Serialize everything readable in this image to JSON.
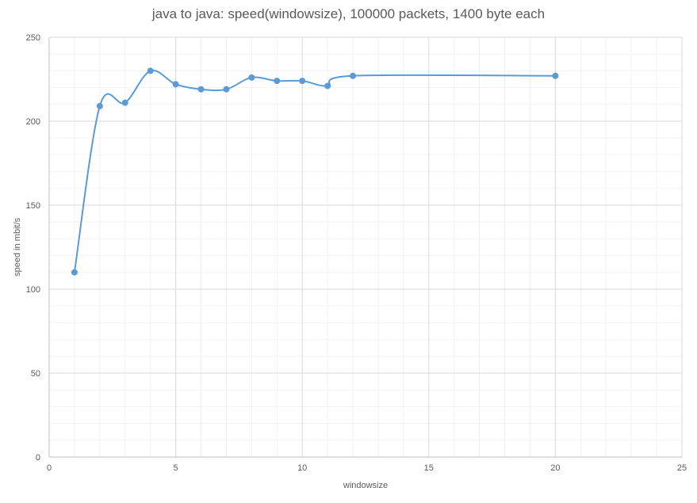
{
  "chart_data": {
    "type": "scatter",
    "title": "java to java: speed(windowsize), 100000 packets, 1400 byte each",
    "xlabel": "windowsize",
    "ylabel": "speed in mbit/s",
    "xlim": [
      0,
      25
    ],
    "ylim": [
      0,
      250
    ],
    "x_ticks": [
      0,
      5,
      10,
      15,
      20,
      25
    ],
    "y_ticks": [
      0,
      50,
      100,
      150,
      200,
      250
    ],
    "x_minor_step": 1,
    "y_minor_step": 10,
    "grid": true,
    "smooth_line": true,
    "series": [
      {
        "color": "#5b9bd5",
        "points": [
          {
            "x": 1,
            "y": 110
          },
          {
            "x": 2,
            "y": 209
          },
          {
            "x": 3,
            "y": 211
          },
          {
            "x": 4,
            "y": 230
          },
          {
            "x": 5,
            "y": 222
          },
          {
            "x": 6,
            "y": 219
          },
          {
            "x": 7,
            "y": 219
          },
          {
            "x": 8,
            "y": 226
          },
          {
            "x": 9,
            "y": 224
          },
          {
            "x": 10,
            "y": 224
          },
          {
            "x": 11,
            "y": 221
          },
          {
            "x": 12,
            "y": 227
          },
          {
            "x": 20,
            "y": 227
          }
        ]
      }
    ],
    "colors": {
      "major_grid": "#d9d9d9",
      "minor_grid": "#f2f2f2",
      "axis": "#bfbfbf",
      "text": "#595959"
    }
  }
}
